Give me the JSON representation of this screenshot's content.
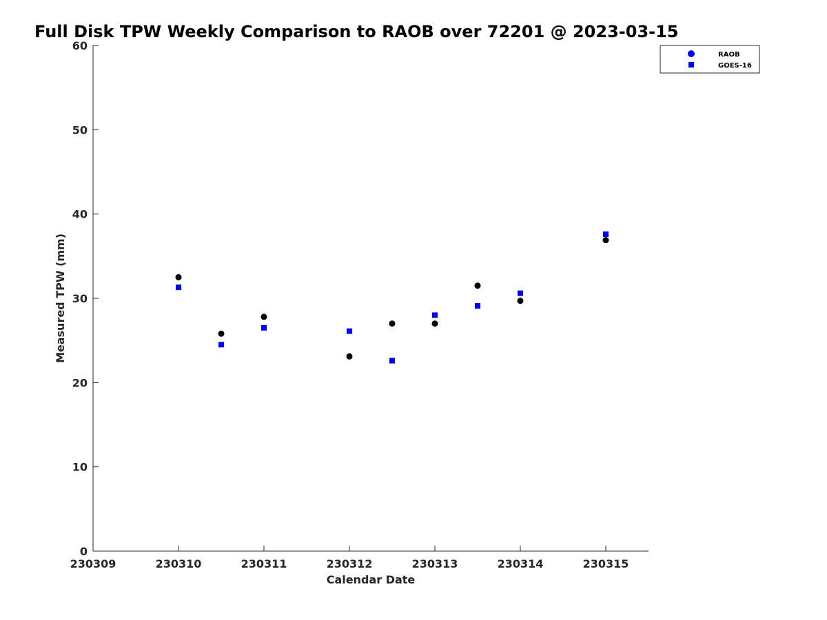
{
  "chart_data": {
    "type": "scatter",
    "title": "Full Disk TPW Weekly Comparison to RAOB over 72201 @ 2023-03-15",
    "xlabel": "Calendar Date",
    "ylabel": "Measured TPW (mm)",
    "x_ticks": [
      "230309",
      "230310",
      "230311",
      "230312",
      "230313",
      "230314",
      "230315"
    ],
    "y_ticks": [
      "0",
      "10",
      "20",
      "30",
      "40",
      "50",
      "60"
    ],
    "xlim": [
      "2023-03-09 00:00",
      "2023-03-15 12:00"
    ],
    "ylim": [
      0,
      60
    ],
    "grid": false,
    "legend_position": "top-right",
    "series": [
      {
        "name": "RAOB",
        "marker": "circle",
        "color": "#000000",
        "legend_color": "#0000ff",
        "points": [
          {
            "x": "2023-03-10 00:00",
            "y": 32.5
          },
          {
            "x": "2023-03-10 12:00",
            "y": 25.8
          },
          {
            "x": "2023-03-11 00:00",
            "y": 27.8
          },
          {
            "x": "2023-03-12 00:00",
            "y": 23.1
          },
          {
            "x": "2023-03-12 12:00",
            "y": 27.0
          },
          {
            "x": "2023-03-13 00:00",
            "y": 27.0
          },
          {
            "x": "2023-03-13 12:00",
            "y": 31.5
          },
          {
            "x": "2023-03-14 00:00",
            "y": 29.7
          },
          {
            "x": "2023-03-15 00:00",
            "y": 36.9
          }
        ]
      },
      {
        "name": "GOES-16",
        "marker": "square",
        "color": "#0000ff",
        "legend_color": "#0000ff",
        "points": [
          {
            "x": "2023-03-10 00:00",
            "y": 31.3
          },
          {
            "x": "2023-03-10 12:00",
            "y": 24.5
          },
          {
            "x": "2023-03-11 00:00",
            "y": 26.5
          },
          {
            "x": "2023-03-12 00:00",
            "y": 26.1
          },
          {
            "x": "2023-03-12 12:00",
            "y": 22.6
          },
          {
            "x": "2023-03-13 00:00",
            "y": 28.0
          },
          {
            "x": "2023-03-13 12:00",
            "y": 29.1
          },
          {
            "x": "2023-03-14 00:00",
            "y": 30.6
          },
          {
            "x": "2023-03-15 00:00",
            "y": 37.6
          }
        ]
      }
    ]
  }
}
